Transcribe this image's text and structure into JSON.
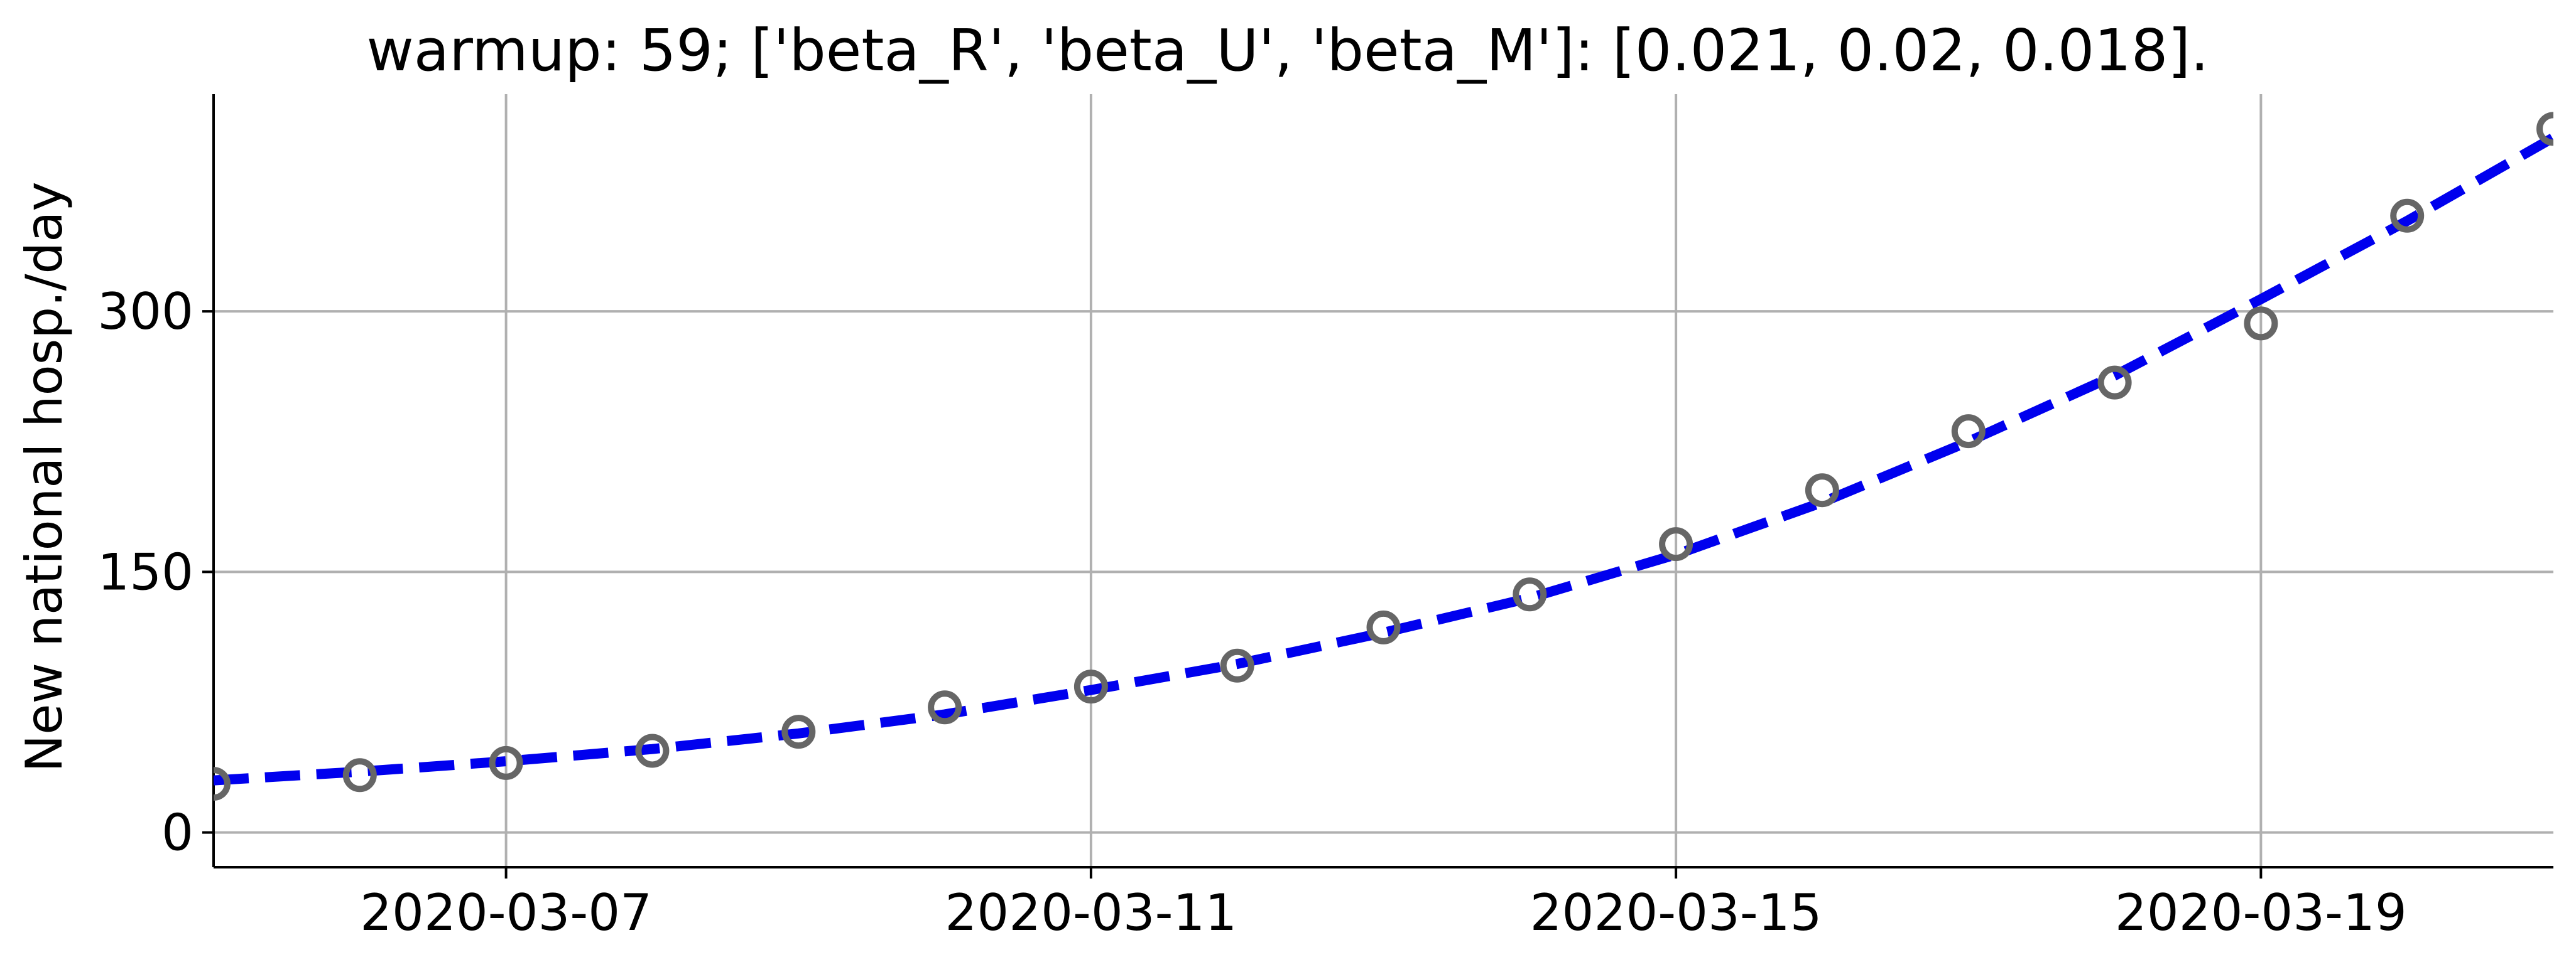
{
  "chart_data": {
    "type": "line",
    "title": "warmup: 59; ['beta_R', 'beta_U', 'beta_M']: [0.021, 0.02, 0.018].",
    "xlabel": "",
    "ylabel": "New national hosp./day",
    "x_ticks": [
      "2020-03-07",
      "2020-03-11",
      "2020-03-15",
      "2020-03-19"
    ],
    "y_ticks": [
      0,
      150,
      300
    ],
    "xlim": [
      "2020-03-05",
      "2020-03-21"
    ],
    "ylim": [
      -20,
      425
    ],
    "grid": true,
    "series": [
      {
        "kind": "observed",
        "marker": "open-circle",
        "color": "#666666",
        "x": [
          "2020-03-05",
          "2020-03-06",
          "2020-03-07",
          "2020-03-08",
          "2020-03-09",
          "2020-03-10",
          "2020-03-11",
          "2020-03-12",
          "2020-03-13",
          "2020-03-14",
          "2020-03-15",
          "2020-03-16",
          "2020-03-17",
          "2020-03-18",
          "2020-03-19",
          "2020-03-20",
          "2020-03-21"
        ],
        "y": [
          28,
          33,
          40,
          47,
          58,
          72,
          84,
          96,
          118,
          137,
          166,
          197,
          231,
          259,
          293,
          355,
          405
        ]
      },
      {
        "kind": "model",
        "style": "dashed",
        "color": "#0000ee",
        "x": [
          "2020-03-05",
          "2020-03-06",
          "2020-03-07",
          "2020-03-08",
          "2020-03-09",
          "2020-03-10",
          "2020-03-11",
          "2020-03-12",
          "2020-03-13",
          "2020-03-14",
          "2020-03-15",
          "2020-03-16",
          "2020-03-17",
          "2020-03-18",
          "2020-03-19",
          "2020-03-20",
          "2020-03-21"
        ],
        "y": [
          30,
          35,
          41,
          48,
          57,
          68,
          82,
          97,
          115,
          135,
          160,
          190,
          225,
          263,
          307,
          352,
          400
        ]
      }
    ]
  }
}
